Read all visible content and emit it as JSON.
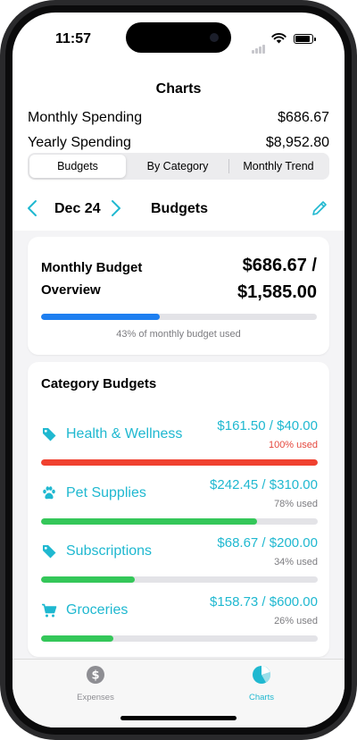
{
  "status": {
    "time": "11:57"
  },
  "header": {
    "title": "Charts"
  },
  "summary": {
    "monthly_label": "Monthly Spending",
    "monthly_value": "$686.67",
    "yearly_label": "Yearly Spending",
    "yearly_value": "$8,952.80"
  },
  "segments": {
    "budgets": "Budgets",
    "by_category": "By Category",
    "monthly_trend": "Monthly Trend",
    "selected": "Budgets"
  },
  "nav": {
    "month": "Dec 24",
    "title": "Budgets"
  },
  "overview": {
    "title": "Monthly Budget Overview",
    "amount_line1": "$686.67 /",
    "amount_line2": "$1,585.00",
    "progress": 0.43,
    "note": "43% of monthly budget used",
    "bar_color": "#1e7ff0"
  },
  "category_budgets": {
    "title": "Category Budgets",
    "items": [
      {
        "icon": "tag-icon",
        "name": "Health & Wellness",
        "amount": "$161.50 / $40.00",
        "used": "100% used",
        "progress": 1.0,
        "color": "#f0412f"
      },
      {
        "icon": "paw-icon",
        "name": "Pet Supplies",
        "amount": "$242.45 / $310.00",
        "used": "78% used",
        "progress": 0.78,
        "color": "#34c759"
      },
      {
        "icon": "tag-icon",
        "name": "Subscriptions",
        "amount": "$68.67 / $200.00",
        "used": "34% used",
        "progress": 0.34,
        "color": "#34c759"
      },
      {
        "icon": "cart-icon",
        "name": "Groceries",
        "amount": "$158.73 / $600.00",
        "used": "26% used",
        "progress": 0.26,
        "color": "#34c759"
      }
    ]
  },
  "tabbar": {
    "expenses": "Expenses",
    "charts": "Charts",
    "active": "Charts"
  },
  "colors": {
    "accent": "#1fb8d0"
  }
}
